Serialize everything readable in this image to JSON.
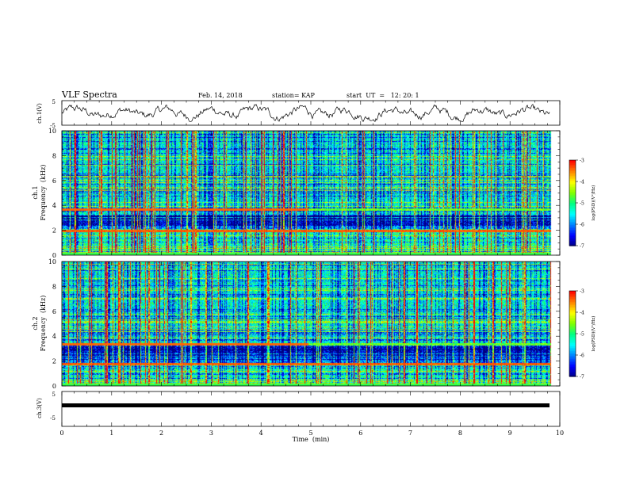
{
  "header": {
    "title": "VLF Spectra",
    "date": "Feb. 14, 2018",
    "station": "station= KAP",
    "start": "start  UT  =   12: 20: 1"
  },
  "chart_data": [
    {
      "type": "line",
      "title": "",
      "ylabel": "ch.1(V)",
      "ylim": [
        -5,
        5
      ],
      "yticks": [
        "5",
        "-5"
      ],
      "xlim": [
        0,
        10
      ],
      "description_values": "waveform noise around 0 V",
      "series": [
        {
          "values_range": [
            -2.5,
            2.5
          ]
        }
      ]
    },
    {
      "type": "heatmap",
      "ylabel": [
        "ch.1",
        "Frequency  (kHz)"
      ],
      "ylim": [
        0,
        10
      ],
      "yticks": [
        "0",
        "2",
        "4",
        "6",
        "8",
        "10"
      ],
      "xlim": [
        0,
        10
      ],
      "colorbar": {
        "label": "log(PSD)(V²/Hz)",
        "range": [
          -7,
          -3
        ],
        "ticks": [
          "-3",
          "-4",
          "-5",
          "-6",
          "-7"
        ]
      },
      "features": {
        "narrowband_line_kHz": 3.7,
        "line_switch_time_min": 4.95,
        "strong_band_kHz": 2.0
      }
    },
    {
      "type": "heatmap",
      "ylabel": [
        "ch.2",
        "Frequency  (kHz)"
      ],
      "ylim": [
        0,
        10
      ],
      "yticks": [
        "0",
        "2",
        "4",
        "6",
        "8",
        "10"
      ],
      "xlim": [
        0,
        10
      ],
      "colorbar": {
        "label": "log(PSD)(V²/Hz)",
        "range": [
          -7,
          -3
        ],
        "ticks": [
          "-3",
          "-4",
          "-5",
          "-6",
          "-7"
        ]
      },
      "features": {
        "narrowband_line_kHz": 3.4,
        "line_switch_time_min": 4.95,
        "strong_band_kHz": 1.8
      }
    },
    {
      "type": "line",
      "ylabel": "ch.3(V)",
      "ylim": [
        -5,
        5
      ],
      "yticks": [
        "5",
        "-5"
      ],
      "xlim": [
        0,
        10
      ],
      "series": [
        {
          "values": [
            0,
            0
          ]
        }
      ]
    }
  ],
  "xaxis": {
    "label": "Time  (min)",
    "ticks": [
      "0",
      "1",
      "2",
      "3",
      "4",
      "5",
      "6",
      "7",
      "8",
      "9",
      "10"
    ],
    "xlim": [
      0,
      10
    ]
  },
  "colors": {
    "colormap": [
      "#000080",
      "#0000ff",
      "#0080ff",
      "#00ffff",
      "#00ff80",
      "#80ff00",
      "#ffff00",
      "#ff8000",
      "#ff0000"
    ]
  }
}
